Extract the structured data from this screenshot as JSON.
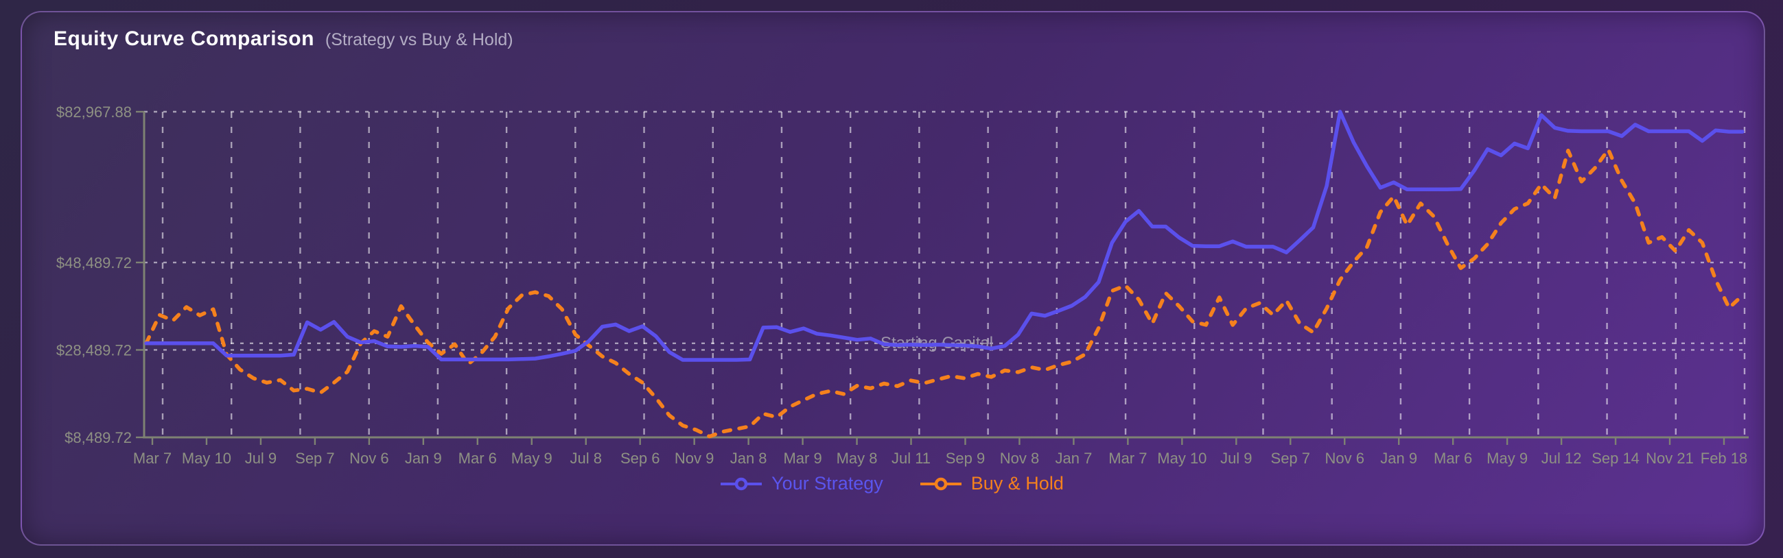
{
  "header": {
    "title": "Equity Curve Comparison",
    "subtitle": "(Strategy vs Buy & Hold)"
  },
  "colors": {
    "strategy_line": "#5b50ec",
    "buyhold_line": "#f5811d",
    "axis_line": "#7e8273",
    "axis_text": "#8e9183",
    "grid": "rgba(255,255,255,0.55)",
    "annotation_text": "#9d95aa",
    "title": "#ffffff",
    "subtitle": "#b3adc4",
    "panel_border": "rgba(170,130,220,0.45)"
  },
  "chart_data": {
    "type": "line",
    "title": "Equity Curve Comparison (Strategy vs Buy & Hold)",
    "grid": "dashed-white-vertical-and-horizontal",
    "legend_position": "bottom",
    "ylim": [
      8489.72,
      82967.88
    ],
    "y_ticks": [
      {
        "label": "$82,967.88",
        "value": 82967.88
      },
      {
        "label": "$48,489.72",
        "value": 48489.72
      },
      {
        "label": "$28,489.72",
        "value": 28489.72
      },
      {
        "label": "$8,489.72",
        "value": 8489.72
      }
    ],
    "annotation": {
      "label": "Starting Capital",
      "value": 30000
    },
    "x_tick_labels": [
      "Mar 7",
      "May 10",
      "Jul 9",
      "Sep 7",
      "Nov 6",
      "Jan 9",
      "Mar 6",
      "May 9",
      "Jul 8",
      "Sep 6",
      "Nov 9",
      "Jan 8",
      "Mar 9",
      "May 8",
      "Jul 11",
      "Sep 9",
      "Nov 8",
      "Jan 7",
      "Mar 7",
      "May 10",
      "Jul 9",
      "Sep 7",
      "Nov 6",
      "Jan 9",
      "Mar 6",
      "May 9",
      "Jul 12",
      "Sep 14",
      "Nov 21",
      "Feb 18"
    ],
    "series": [
      {
        "name": "Your Strategy",
        "color": "#5b50ec",
        "style": "solid",
        "dash": "",
        "values": [
          30000,
          30000,
          30000,
          30000,
          30000,
          30000,
          27200,
          27200,
          27200,
          27200,
          27200,
          27400,
          34800,
          33100,
          34900,
          31500,
          30200,
          30500,
          29300,
          29200,
          29400,
          29200,
          26300,
          26300,
          26300,
          26300,
          26300,
          26300,
          26400,
          26500,
          27000,
          27600,
          28300,
          30500,
          33800,
          34300,
          32800,
          33900,
          31600,
          28000,
          26200,
          26200,
          26200,
          26200,
          26200,
          26300,
          33600,
          33700,
          32600,
          33400,
          32200,
          31800,
          31300,
          30800,
          31100,
          29800,
          29600,
          29700,
          29600,
          29700,
          29600,
          29500,
          29300,
          28800,
          29400,
          32000,
          36800,
          36300,
          37400,
          38600,
          40600,
          44000,
          53000,
          57800,
          60300,
          56700,
          56700,
          54200,
          52300,
          52200,
          52200,
          53300,
          52100,
          52100,
          52100,
          50800,
          53600,
          56500,
          66000,
          82968,
          76000,
          70500,
          65600,
          66800,
          65200,
          65200,
          65200,
          65200,
          65300,
          69500,
          74400,
          73000,
          75700,
          74600,
          82200,
          79300,
          78600,
          78500,
          78500,
          78500,
          77400,
          80000,
          78500,
          78500,
          78500,
          78500,
          76300,
          78700,
          78400,
          78400
        ]
      },
      {
        "name": "Buy & Hold",
        "color": "#f5811d",
        "style": "dashed",
        "dash": "10 13",
        "values": [
          30000,
          36500,
          35200,
          38300,
          36400,
          37800,
          27400,
          24000,
          22000,
          21000,
          21600,
          19200,
          19600,
          18700,
          21000,
          23500,
          30000,
          32800,
          31500,
          38500,
          34200,
          30200,
          27600,
          29800,
          25200,
          27800,
          31500,
          38000,
          41000,
          41700,
          40800,
          37800,
          32000,
          29500,
          27000,
          25500,
          23000,
          21000,
          17500,
          13500,
          11200,
          10200,
          8700,
          9800,
          10400,
          11000,
          13900,
          13100,
          15500,
          17000,
          18400,
          19100,
          18400,
          20300,
          19700,
          20800,
          20200,
          21500,
          20900,
          21700,
          22500,
          22000,
          23000,
          22300,
          23800,
          23400,
          24500,
          23900,
          25000,
          25800,
          27500,
          33500,
          42000,
          43200,
          40000,
          34500,
          41500,
          38500,
          35000,
          34200,
          40500,
          34200,
          38000,
          39200,
          36500,
          39800,
          34500,
          32500,
          38000,
          44500,
          48600,
          52000,
          60000,
          63600,
          57000,
          62000,
          59000,
          52700,
          47200,
          49400,
          52700,
          57500,
          60700,
          62000,
          66400,
          63200,
          74100,
          67000,
          70100,
          74300,
          67200,
          62000,
          53000,
          54300,
          51100,
          55900,
          53000,
          44500,
          38100,
          41000
        ]
      }
    ]
  }
}
